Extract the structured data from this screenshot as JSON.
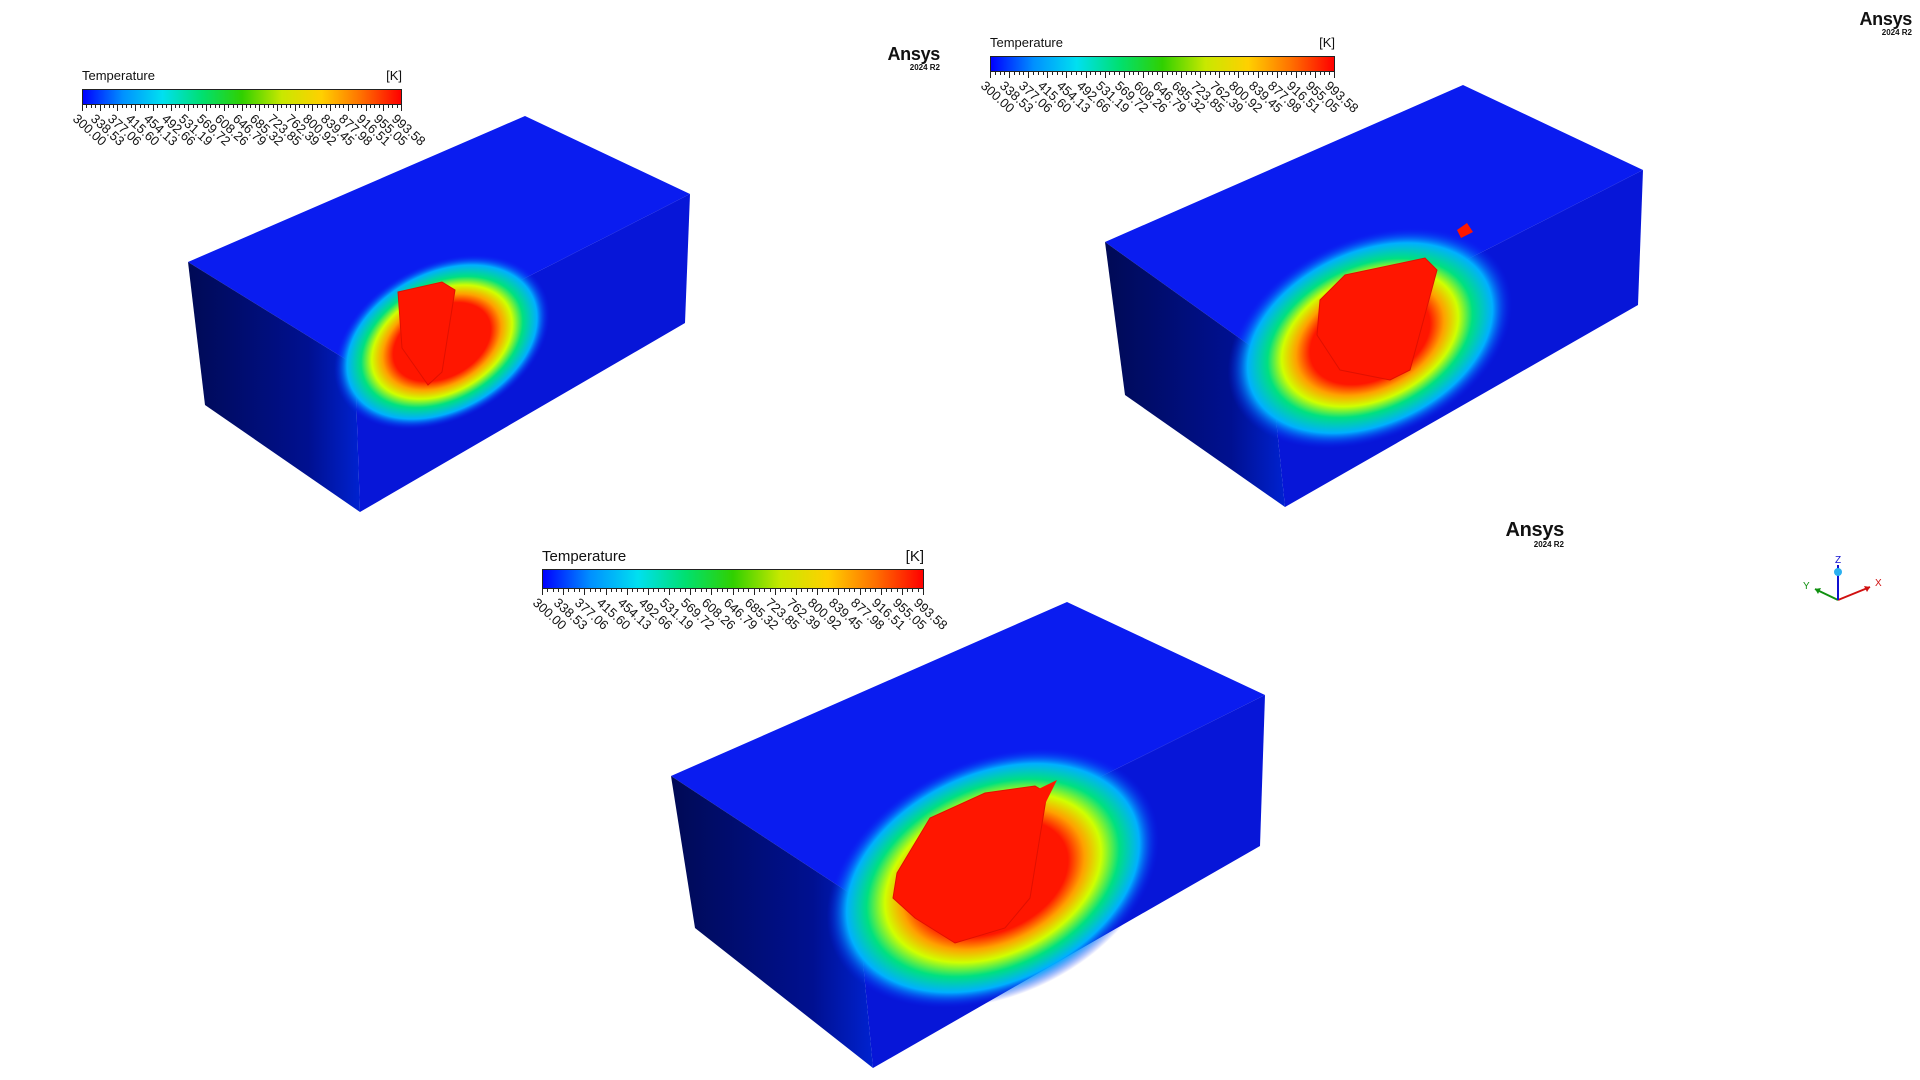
{
  "colorbar": {
    "title": "Temperature",
    "unit": "[K]",
    "ticks": [
      "300.00",
      "338.53",
      "377.06",
      "415.60",
      "454.13",
      "492.66",
      "531.19",
      "569.72",
      "608.26",
      "646.79",
      "685.32",
      "723.85",
      "762.39",
      "800.92",
      "839.45",
      "877.98",
      "916.51",
      "955.05",
      "993.58"
    ],
    "gradient": [
      "#0000ff",
      "#0090ff",
      "#00e0f0",
      "#00e070",
      "#30d000",
      "#c8e800",
      "#ffd000",
      "#ff7000",
      "#ff0000"
    ]
  },
  "logo": {
    "brand": "Ansys",
    "version": "2024 R2"
  },
  "axes": {
    "x": "X",
    "y": "Y",
    "z": "Z",
    "colors": {
      "x": "#d01010",
      "y": "#109010",
      "z": "#1010d0"
    }
  },
  "block_colors": {
    "top": "#0a1cf0",
    "front": "#000a44",
    "side": "#0716d8",
    "hot": "#ff1600"
  }
}
